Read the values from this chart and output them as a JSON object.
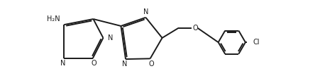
{
  "bg_color": "#ffffff",
  "bond_color": "#1a1a1a",
  "label_color": "#1a1a1a",
  "linewidth": 1.4,
  "figsize": [
    4.51,
    1.18
  ],
  "dpi": 100,
  "xlim": [
    0,
    9.5
  ],
  "ylim": [
    0,
    2.47
  ]
}
